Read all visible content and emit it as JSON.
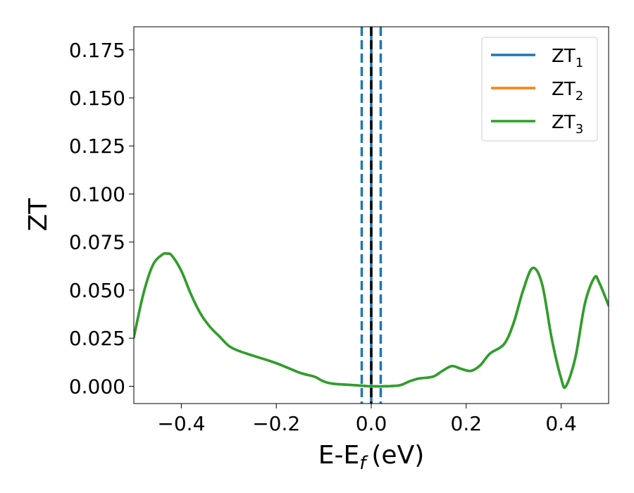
{
  "chart_data": {
    "type": "line",
    "xlabel_main": "E-E",
    "xlabel_sub": "f",
    "xlabel_unit": "(eV)",
    "ylabel": "ZT",
    "xlim": [
      -0.5,
      0.5
    ],
    "ylim": [
      -0.009,
      0.187
    ],
    "xticks": [
      {
        "value": -0.4,
        "label": "−0.4"
      },
      {
        "value": -0.2,
        "label": "−0.2"
      },
      {
        "value": 0.0,
        "label": "0.0"
      },
      {
        "value": 0.2,
        "label": "0.2"
      },
      {
        "value": 0.4,
        "label": "0.4"
      }
    ],
    "yticks": [
      {
        "value": 0.0,
        "label": "0.000"
      },
      {
        "value": 0.025,
        "label": "0.025"
      },
      {
        "value": 0.05,
        "label": "0.050"
      },
      {
        "value": 0.075,
        "label": "0.075"
      },
      {
        "value": 0.1,
        "label": "0.100"
      },
      {
        "value": 0.125,
        "label": "0.125"
      },
      {
        "value": 0.15,
        "label": "0.150"
      },
      {
        "value": 0.175,
        "label": "0.175"
      }
    ],
    "legend_position": "top-right",
    "vlines": [
      {
        "x": -0.02,
        "color": "#1f77b4",
        "style": "dashed"
      },
      {
        "x": 0.0,
        "color": "#1f77b4",
        "style": "solid"
      },
      {
        "x": 0.02,
        "color": "#1f77b4",
        "style": "dashed"
      },
      {
        "x": 0.0,
        "color": "#000000",
        "style": "dashed"
      }
    ],
    "series": [
      {
        "name": "ZT",
        "name_sub": "1",
        "color": "#1f77b4",
        "x": [
          -0.5,
          -0.48,
          -0.46,
          -0.44,
          -0.43,
          -0.42,
          -0.4,
          -0.38,
          -0.36,
          -0.34,
          -0.32,
          -0.3,
          -0.28,
          -0.25,
          -0.2,
          -0.15,
          -0.12,
          -0.1,
          -0.08,
          -0.05,
          -0.02,
          0.0,
          0.03,
          0.06,
          0.08,
          0.1,
          0.13,
          0.15,
          0.17,
          0.19,
          0.21,
          0.23,
          0.25,
          0.28,
          0.3,
          0.32,
          0.34,
          0.36,
          0.38,
          0.4,
          0.41,
          0.43,
          0.45,
          0.47,
          0.48,
          0.5
        ],
        "y": [
          0.0255,
          0.048,
          0.063,
          0.0685,
          0.069,
          0.068,
          0.06,
          0.048,
          0.038,
          0.031,
          0.026,
          0.021,
          0.0185,
          0.016,
          0.012,
          0.007,
          0.005,
          0.0025,
          0.0013,
          0.0008,
          0.0003,
          0.0,
          0.0,
          0.0005,
          0.0025,
          0.004,
          0.005,
          0.008,
          0.0105,
          0.009,
          0.008,
          0.011,
          0.017,
          0.022,
          0.033,
          0.05,
          0.0615,
          0.053,
          0.025,
          0.004,
          0.0,
          0.015,
          0.043,
          0.0565,
          0.054,
          0.042
        ]
      },
      {
        "name": "ZT",
        "name_sub": "2",
        "color": "#ff7f0e",
        "x": [
          -0.5,
          -0.48,
          -0.46,
          -0.44,
          -0.43,
          -0.42,
          -0.4,
          -0.38,
          -0.36,
          -0.34,
          -0.32,
          -0.3,
          -0.28,
          -0.25,
          -0.2,
          -0.15,
          -0.12,
          -0.1,
          -0.08,
          -0.05,
          -0.02,
          0.0,
          0.03,
          0.06,
          0.08,
          0.1,
          0.13,
          0.15,
          0.17,
          0.19,
          0.21,
          0.23,
          0.25,
          0.28,
          0.3,
          0.32,
          0.34,
          0.36,
          0.38,
          0.4,
          0.41,
          0.43,
          0.45,
          0.47,
          0.48,
          0.5
        ],
        "y": [
          0.0255,
          0.048,
          0.063,
          0.0685,
          0.069,
          0.068,
          0.06,
          0.048,
          0.038,
          0.031,
          0.026,
          0.021,
          0.0185,
          0.016,
          0.012,
          0.007,
          0.005,
          0.0025,
          0.0013,
          0.0008,
          0.0003,
          0.0,
          0.0,
          0.0005,
          0.0025,
          0.004,
          0.005,
          0.008,
          0.0105,
          0.009,
          0.008,
          0.011,
          0.017,
          0.022,
          0.033,
          0.05,
          0.0615,
          0.053,
          0.025,
          0.004,
          0.0,
          0.015,
          0.043,
          0.0565,
          0.054,
          0.042
        ]
      },
      {
        "name": "ZT",
        "name_sub": "3",
        "color": "#2ca02c",
        "x": [
          -0.5,
          -0.48,
          -0.46,
          -0.44,
          -0.43,
          -0.42,
          -0.4,
          -0.38,
          -0.36,
          -0.34,
          -0.32,
          -0.3,
          -0.28,
          -0.25,
          -0.2,
          -0.15,
          -0.12,
          -0.1,
          -0.08,
          -0.05,
          -0.02,
          0.0,
          0.03,
          0.06,
          0.08,
          0.1,
          0.13,
          0.15,
          0.17,
          0.19,
          0.21,
          0.23,
          0.25,
          0.28,
          0.3,
          0.32,
          0.34,
          0.36,
          0.38,
          0.4,
          0.41,
          0.43,
          0.45,
          0.47,
          0.48,
          0.5
        ],
        "y": [
          0.0255,
          0.048,
          0.063,
          0.0685,
          0.069,
          0.068,
          0.06,
          0.048,
          0.038,
          0.031,
          0.026,
          0.021,
          0.0185,
          0.016,
          0.012,
          0.007,
          0.005,
          0.0025,
          0.0013,
          0.0008,
          0.0003,
          0.0,
          0.0,
          0.0005,
          0.0025,
          0.004,
          0.005,
          0.008,
          0.0105,
          0.009,
          0.008,
          0.011,
          0.017,
          0.022,
          0.033,
          0.05,
          0.0615,
          0.053,
          0.025,
          0.004,
          0.0,
          0.015,
          0.043,
          0.0565,
          0.054,
          0.042
        ]
      }
    ]
  }
}
